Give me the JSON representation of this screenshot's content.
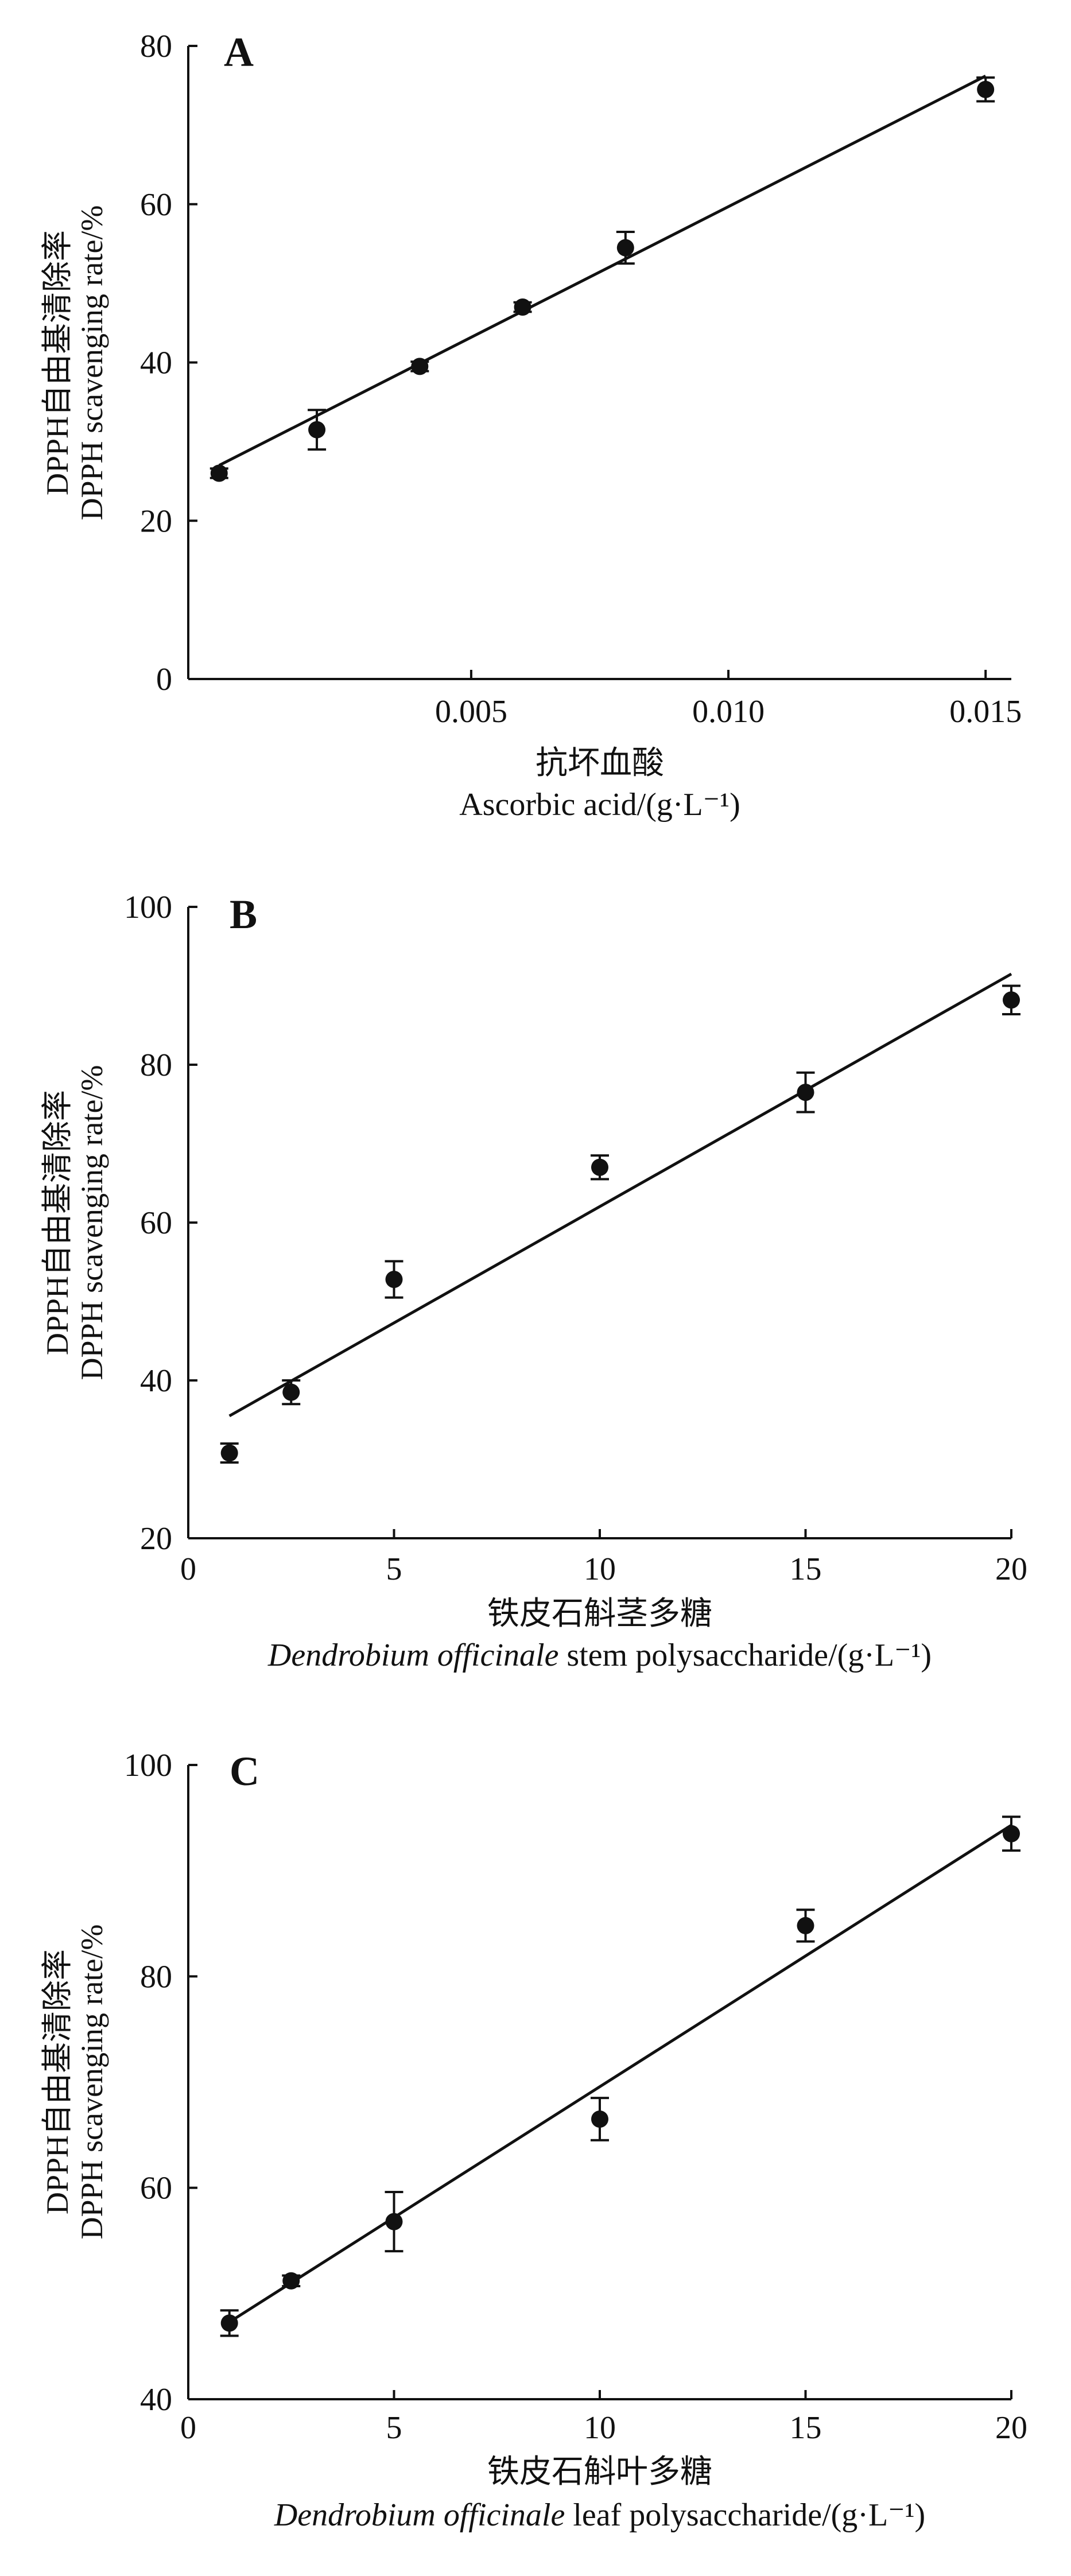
{
  "chart_data": [
    {
      "type": "scatter",
      "panel_label": "A",
      "x": [
        0.0001,
        0.002,
        0.004,
        0.006,
        0.008,
        0.015
      ],
      "y": [
        26.0,
        31.5,
        39.5,
        47.0,
        54.5,
        74.5
      ],
      "y_err": [
        0.6,
        2.5,
        0.6,
        0.6,
        2.0,
        1.5
      ],
      "fit_line": {
        "x": [
          0.0001,
          0.015
        ],
        "y": [
          27.0,
          76.2
        ]
      },
      "xlim": [
        -0.0005,
        0.0155
      ],
      "ylim": [
        0,
        80
      ],
      "xticks": [
        0.005,
        0.01,
        0.015
      ],
      "xtick_labels": [
        "0.005",
        "0.010",
        "0.015"
      ],
      "yticks": [
        0,
        20,
        40,
        60,
        80
      ],
      "ytick_labels": [
        "0",
        "20",
        "40",
        "60",
        "80"
      ],
      "ylabel_line1": "DPPH自由基清除率",
      "ylabel_line2": "DPPH scavenging rate/%",
      "xlabel_line1": "抗坏血酸",
      "xlabel_line2": "Ascorbic acid/(g·L⁻¹)",
      "xlabel_italic": "",
      "xlabel_rest": "Ascorbic acid/(g·L⁻¹)"
    },
    {
      "type": "scatter",
      "panel_label": "B",
      "x": [
        1,
        2.5,
        5,
        10,
        15,
        20
      ],
      "y": [
        30.8,
        38.5,
        52.8,
        67.0,
        76.5,
        88.2
      ],
      "y_err": [
        1.2,
        1.5,
        2.3,
        1.5,
        2.5,
        1.8
      ],
      "fit_line": {
        "x": [
          1,
          20
        ],
        "y": [
          35.5,
          91.5
        ]
      },
      "xlim": [
        0,
        20
      ],
      "ylim": [
        20,
        100
      ],
      "xticks": [
        0,
        5,
        10,
        15,
        20
      ],
      "xtick_labels": [
        "0",
        "5",
        "10",
        "15",
        "20"
      ],
      "yticks": [
        20,
        40,
        60,
        80,
        100
      ],
      "ytick_labels": [
        "20",
        "40",
        "60",
        "80",
        "100"
      ],
      "ylabel_line1": "DPPH自由基清除率",
      "ylabel_line2": "DPPH scavenging rate/%",
      "xlabel_line1": "铁皮石斛茎多糖",
      "xlabel_italic": "Dendrobium officinale",
      "xlabel_rest": " stem polysaccharide/(g·L⁻¹)"
    },
    {
      "type": "scatter",
      "panel_label": "C",
      "x": [
        1,
        2.5,
        5,
        10,
        15,
        20
      ],
      "y": [
        47.2,
        51.2,
        56.8,
        66.5,
        84.8,
        93.5
      ],
      "y_err": [
        1.2,
        0.5,
        2.8,
        2.0,
        1.5,
        1.6
      ],
      "fit_line": {
        "x": [
          1,
          20
        ],
        "y": [
          47.3,
          94.3
        ]
      },
      "xlim": [
        0,
        20
      ],
      "ylim": [
        40,
        100
      ],
      "xticks": [
        0,
        5,
        10,
        15,
        20
      ],
      "xtick_labels": [
        "0",
        "5",
        "10",
        "15",
        "20"
      ],
      "yticks": [
        40,
        60,
        80,
        100
      ],
      "ytick_labels": [
        "40",
        "60",
        "80",
        "100"
      ],
      "ylabel_line1": "DPPH自由基清除率",
      "ylabel_line2": "DPPH scavenging rate/%",
      "xlabel_line1": "铁皮石斛叶多糖",
      "xlabel_italic": "Dendrobium officinale",
      "xlabel_rest": " leaf polysaccharide/(g·L⁻¹)"
    }
  ]
}
